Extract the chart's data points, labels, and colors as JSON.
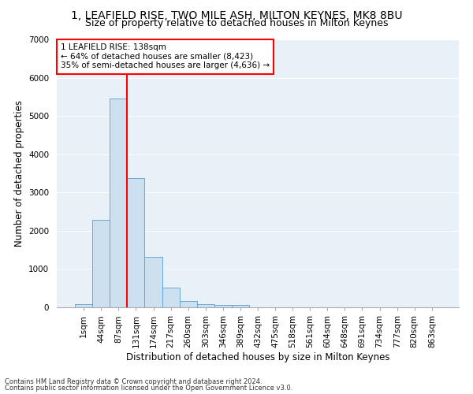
{
  "title": "1, LEAFIELD RISE, TWO MILE ASH, MILTON KEYNES, MK8 8BU",
  "subtitle": "Size of property relative to detached houses in Milton Keynes",
  "xlabel": "Distribution of detached houses by size in Milton Keynes",
  "ylabel": "Number of detached properties",
  "footnote1": "Contains HM Land Registry data © Crown copyright and database right 2024.",
  "footnote2": "Contains public sector information licensed under the Open Government Licence v3.0.",
  "bar_labels": [
    "1sqm",
    "44sqm",
    "87sqm",
    "131sqm",
    "174sqm",
    "217sqm",
    "260sqm",
    "303sqm",
    "346sqm",
    "389sqm",
    "432sqm",
    "475sqm",
    "518sqm",
    "561sqm",
    "604sqm",
    "648sqm",
    "691sqm",
    "734sqm",
    "777sqm",
    "820sqm",
    "863sqm"
  ],
  "bar_values": [
    75,
    2280,
    5460,
    3380,
    1310,
    510,
    175,
    90,
    70,
    55,
    0,
    0,
    0,
    0,
    0,
    0,
    0,
    0,
    0,
    0,
    0
  ],
  "bar_color": "#cce0f0",
  "bar_edge_color": "#5a9fd4",
  "vline_color": "red",
  "annotation_text": "1 LEAFIELD RISE: 138sqm\n← 64% of detached houses are smaller (8,423)\n35% of semi-detached houses are larger (4,636) →",
  "annotation_box_color": "white",
  "annotation_box_edge_color": "red",
  "ylim": [
    0,
    7000
  ],
  "yticks": [
    0,
    1000,
    2000,
    3000,
    4000,
    5000,
    6000,
    7000
  ],
  "background_color": "#e8f0f8",
  "grid_color": "white",
  "title_fontsize": 10,
  "subtitle_fontsize": 9,
  "axis_label_fontsize": 8.5,
  "tick_fontsize": 7.5,
  "annotation_fontsize": 7.5,
  "footnote_fontsize": 6
}
